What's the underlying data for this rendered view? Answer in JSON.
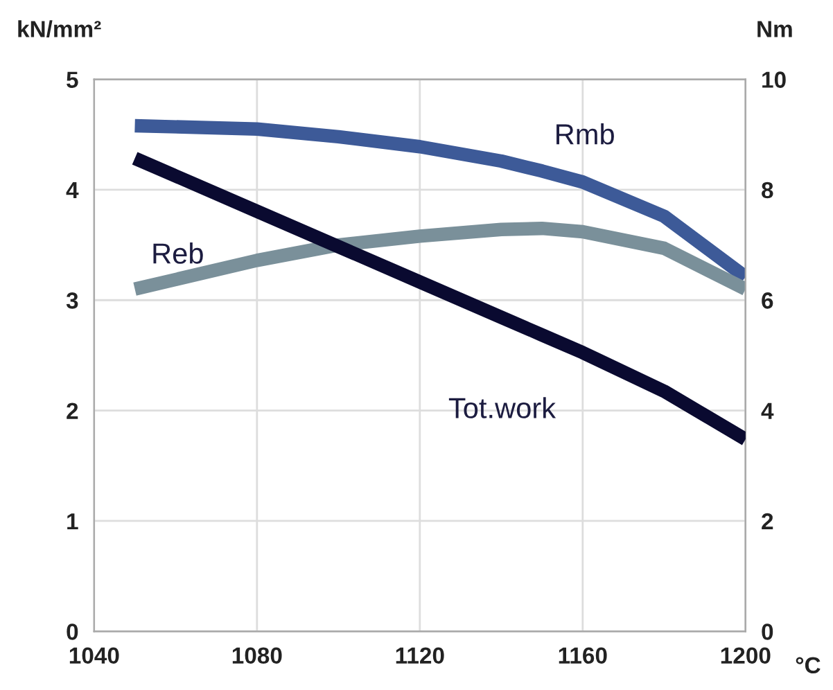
{
  "chart_data": {
    "type": "line",
    "xlabel": "°C",
    "ylabel": "kN/mm²",
    "y2label": "Nm",
    "x": [
      1050,
      1080,
      1100,
      1120,
      1140,
      1150,
      1160,
      1180,
      1200
    ],
    "xlim": [
      1040,
      1200
    ],
    "xticks": [
      1040,
      1080,
      1120,
      1160,
      1200
    ],
    "ylim": [
      0,
      5
    ],
    "yticks": [
      0,
      1,
      2,
      3,
      4,
      5
    ],
    "y2lim": [
      0,
      10
    ],
    "y2ticks": [
      0,
      2,
      4,
      6,
      8,
      10
    ],
    "grid": true,
    "marker": "none",
    "line_style": "solid",
    "series": [
      {
        "name": "Rmb",
        "color": "#3d5a98",
        "values": [
          4.58,
          4.55,
          4.48,
          4.39,
          4.26,
          4.17,
          4.07,
          3.76,
          3.21
        ]
      },
      {
        "name": "Reb",
        "color": "#7a909a",
        "values": [
          3.1,
          3.36,
          3.5,
          3.58,
          3.64,
          3.65,
          3.62,
          3.47,
          3.1
        ]
      },
      {
        "name": "Tot.work",
        "color": "#0a0a30",
        "axis": "y2",
        "values": [
          8.57,
          7.61,
          6.97,
          6.33,
          5.69,
          5.37,
          5.05,
          4.35,
          3.48
        ]
      }
    ]
  }
}
